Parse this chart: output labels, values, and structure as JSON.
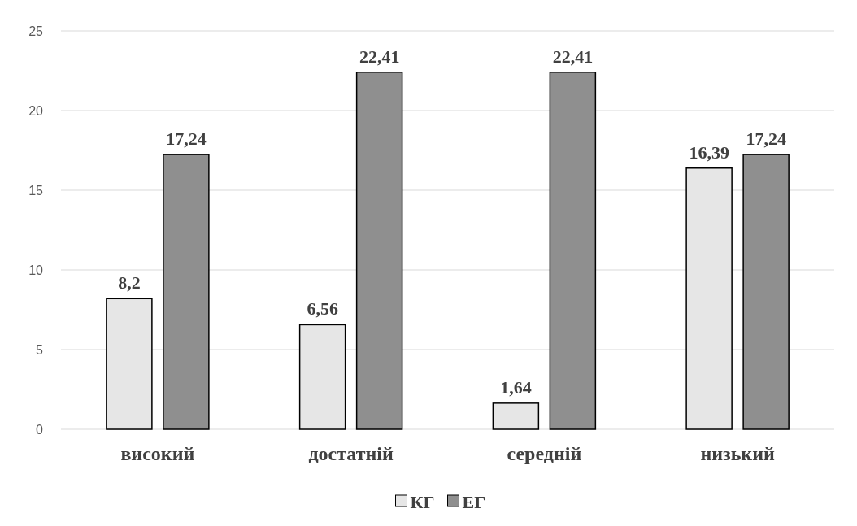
{
  "chart_data": {
    "type": "bar",
    "categories": [
      "високий",
      "достатній",
      "середній",
      "низький"
    ],
    "series": [
      {
        "name": "КГ",
        "color": "#e6e6e6",
        "values": [
          8.2,
          6.56,
          1.64,
          16.39
        ],
        "value_labels": [
          "8,2",
          "6,56",
          "1,64",
          "16,39"
        ]
      },
      {
        "name": "ЕГ",
        "color": "#8f8f8f",
        "values": [
          17.24,
          22.41,
          22.41,
          17.24
        ],
        "value_labels": [
          "17,24",
          "22,41",
          "22,41",
          "17,24"
        ]
      }
    ],
    "ylim": [
      0,
      25
    ],
    "yticks": [
      0,
      5,
      10,
      15,
      20,
      25
    ],
    "grid": "y",
    "legend": "bottom"
  }
}
